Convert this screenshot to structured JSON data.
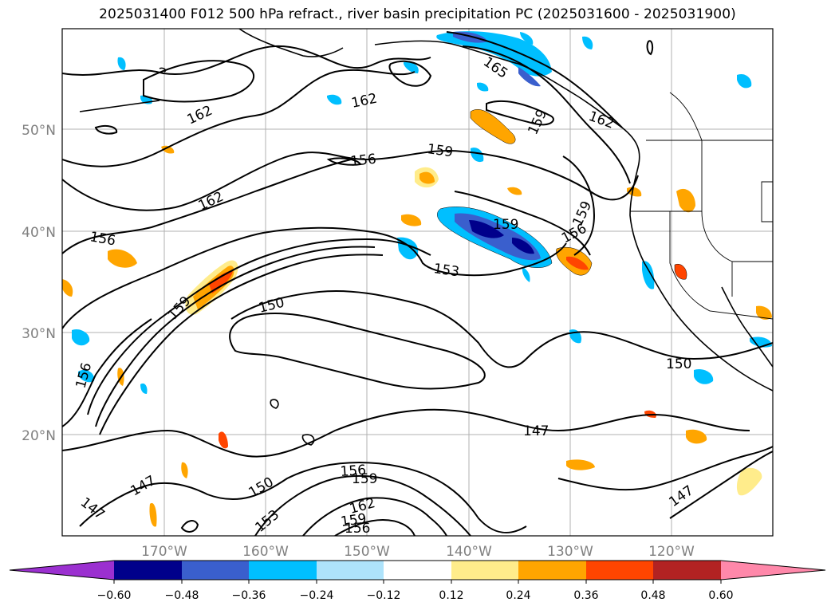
{
  "title": "2025031400 F012 500 hPa refract., river basin precipitation PC (2025031600 - 2025031900)",
  "lat_labels": [
    "50°N",
    "40°N",
    "30°N",
    "20°N"
  ],
  "lon_labels": [
    "170°W",
    "160°W",
    "150°W",
    "140°W",
    "130°W",
    "120°W"
  ],
  "colorbar": {
    "colors": [
      "#9b30d0",
      "#00008b",
      "#3a5fcd",
      "#00bfff",
      "#aee3fb",
      "#ffffff",
      "#ffec8b",
      "#ffa500",
      "#ff4500",
      "#b22222",
      "#ff88aa"
    ],
    "tick_labels": [
      "−0.60",
      "−0.48",
      "−0.36",
      "−0.24",
      "−0.12",
      "0.12",
      "0.24",
      "0.36",
      "0.48",
      "0.60"
    ]
  },
  "contour_labels": [
    "147",
    "150",
    "153",
    "156",
    "159",
    "162",
    "165"
  ],
  "chart_data": {
    "type": "contour map",
    "map_extent": {
      "lon": [
        -180,
        -110
      ],
      "lat": [
        10,
        60
      ]
    },
    "contour_levels": [
      147,
      150,
      153,
      156,
      159,
      162,
      165
    ],
    "shading_levels": [
      -0.6,
      -0.48,
      -0.36,
      -0.24,
      -0.12,
      0.12,
      0.24,
      0.36,
      0.48,
      0.6
    ],
    "grid": true
  }
}
